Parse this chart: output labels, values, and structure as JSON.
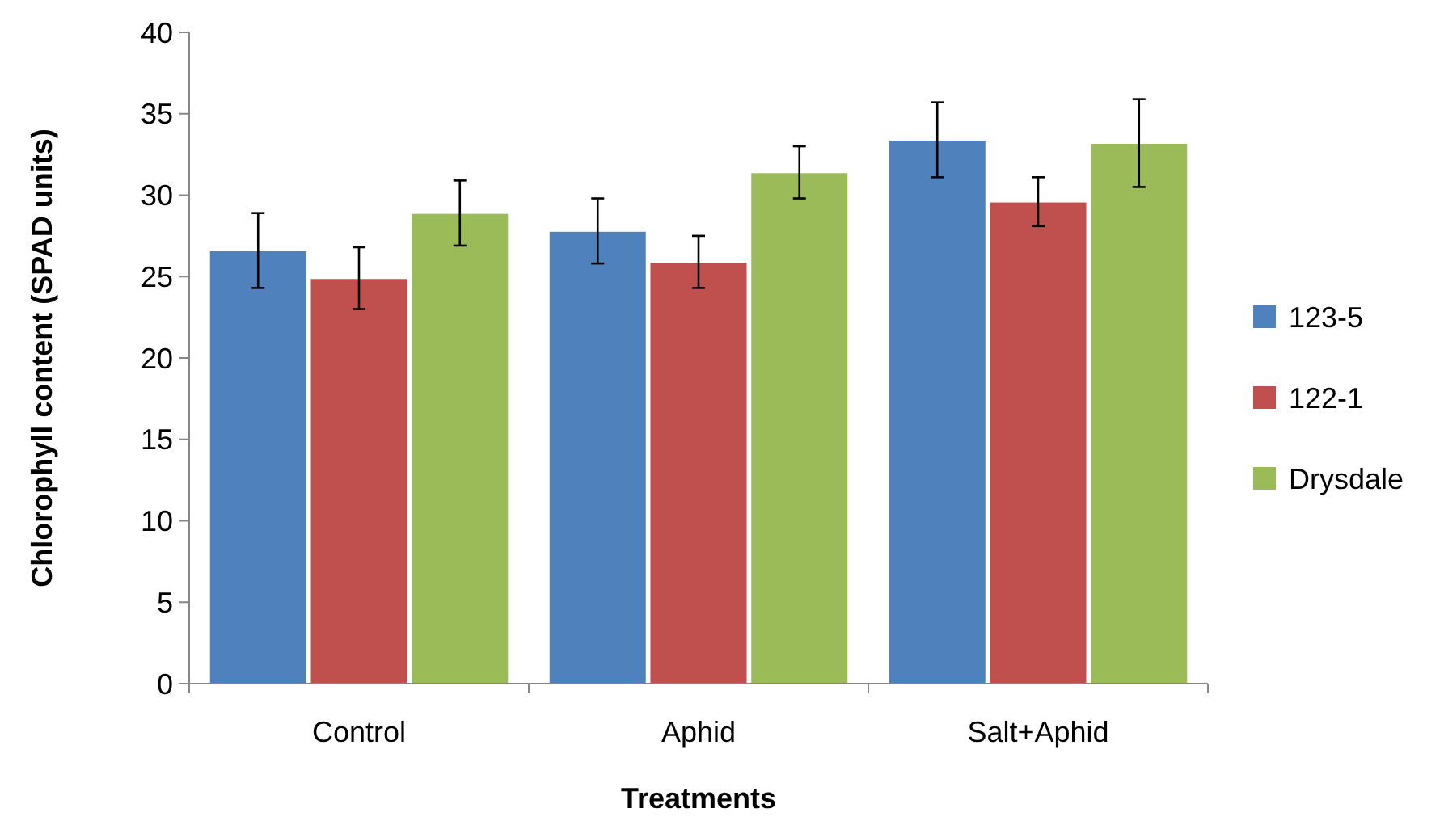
{
  "chart_data": {
    "type": "bar",
    "xlabel": "Treatments",
    "ylabel": "Chlorophyll content (SPAD units)",
    "categories": [
      "Control",
      "Aphid",
      "Salt+Aphid"
    ],
    "series": [
      {
        "name": "123-5",
        "color": "#4f81bd",
        "values": [
          26.6,
          27.8,
          33.4
        ],
        "errors": [
          2.3,
          2.0,
          2.3
        ]
      },
      {
        "name": "122-1",
        "color": "#c0504d",
        "values": [
          24.9,
          25.9,
          29.6
        ],
        "errors": [
          1.9,
          1.6,
          1.5
        ]
      },
      {
        "name": "Drysdale",
        "color": "#9bbb59",
        "values": [
          28.9,
          31.4,
          33.2
        ],
        "errors": [
          2.0,
          1.6,
          2.7
        ]
      }
    ],
    "ylim": [
      0,
      40
    ],
    "yticks": [
      0,
      5,
      10,
      15,
      20,
      25,
      30,
      35,
      40
    ],
    "legend": "right",
    "grid": false
  }
}
